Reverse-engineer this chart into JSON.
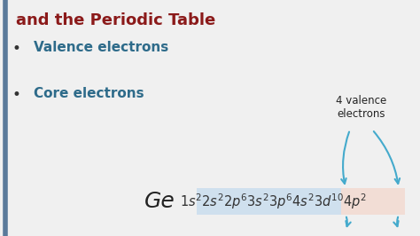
{
  "bg_color": "#f0f0f0",
  "border_color": "#5a7a9a",
  "title": "and the Periodic Table",
  "title_color": "#8B1A1A",
  "title_fontsize": 13,
  "bullet1": "Valence electrons",
  "bullet2": "Core electrons",
  "bullet_color": "#2e6b8a",
  "bullet_fontsize": 11,
  "element": "Ge",
  "element_fontsize": 18,
  "element_color": "#222222",
  "annotation": "4 valence\nelectrons",
  "annotation_color": "#222222",
  "annotation_fontsize": 8.5,
  "arrow_color": "#44aacc",
  "config_blue_bg": "#cfe0ee",
  "config_pink_bg": "#f2ddd5",
  "config_text_color": "#333333",
  "config_fontsize": 10.5
}
